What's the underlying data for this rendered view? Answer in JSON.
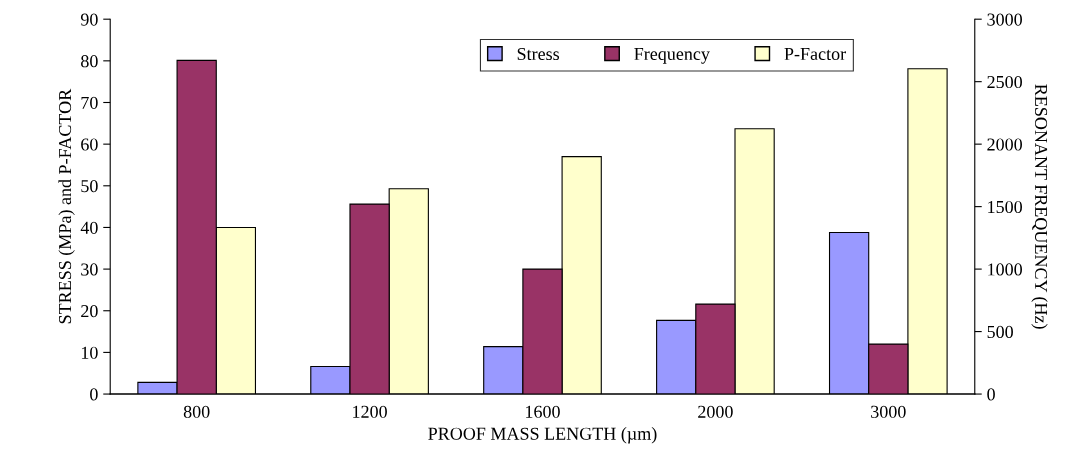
{
  "chart_data": {
    "type": "bar",
    "xlabel": "PROOF MASS LENGTH (µm)",
    "ylabel": "STRESS (MPa) and P-FACTOR",
    "y2label": "RESONANT FREQUENCY (Hz)",
    "categories": [
      "800",
      "1200",
      "1600",
      "2000",
      "3000"
    ],
    "series": [
      {
        "name": "Stress",
        "color": "#9999ff",
        "values": [
          2.8,
          6.6,
          11.4,
          17.7,
          38.8
        ]
      },
      {
        "name": "Frequency",
        "color": "#993366",
        "axis": "y2",
        "values": [
          2670,
          1520,
          1000,
          720,
          400
        ]
      },
      {
        "name": "P-Factor",
        "color": "#ffffcc",
        "values": [
          40,
          49.3,
          57.0,
          63.7,
          78.1
        ]
      }
    ],
    "ylim": [
      0,
      90
    ],
    "yticks": [
      0,
      10,
      20,
      30,
      40,
      50,
      60,
      70,
      80,
      90
    ],
    "y2lim": [
      0,
      3000
    ],
    "y2ticks": [
      0,
      500,
      1000,
      1500,
      2000,
      2500,
      3000
    ],
    "grid": false,
    "legend": "top right"
  }
}
